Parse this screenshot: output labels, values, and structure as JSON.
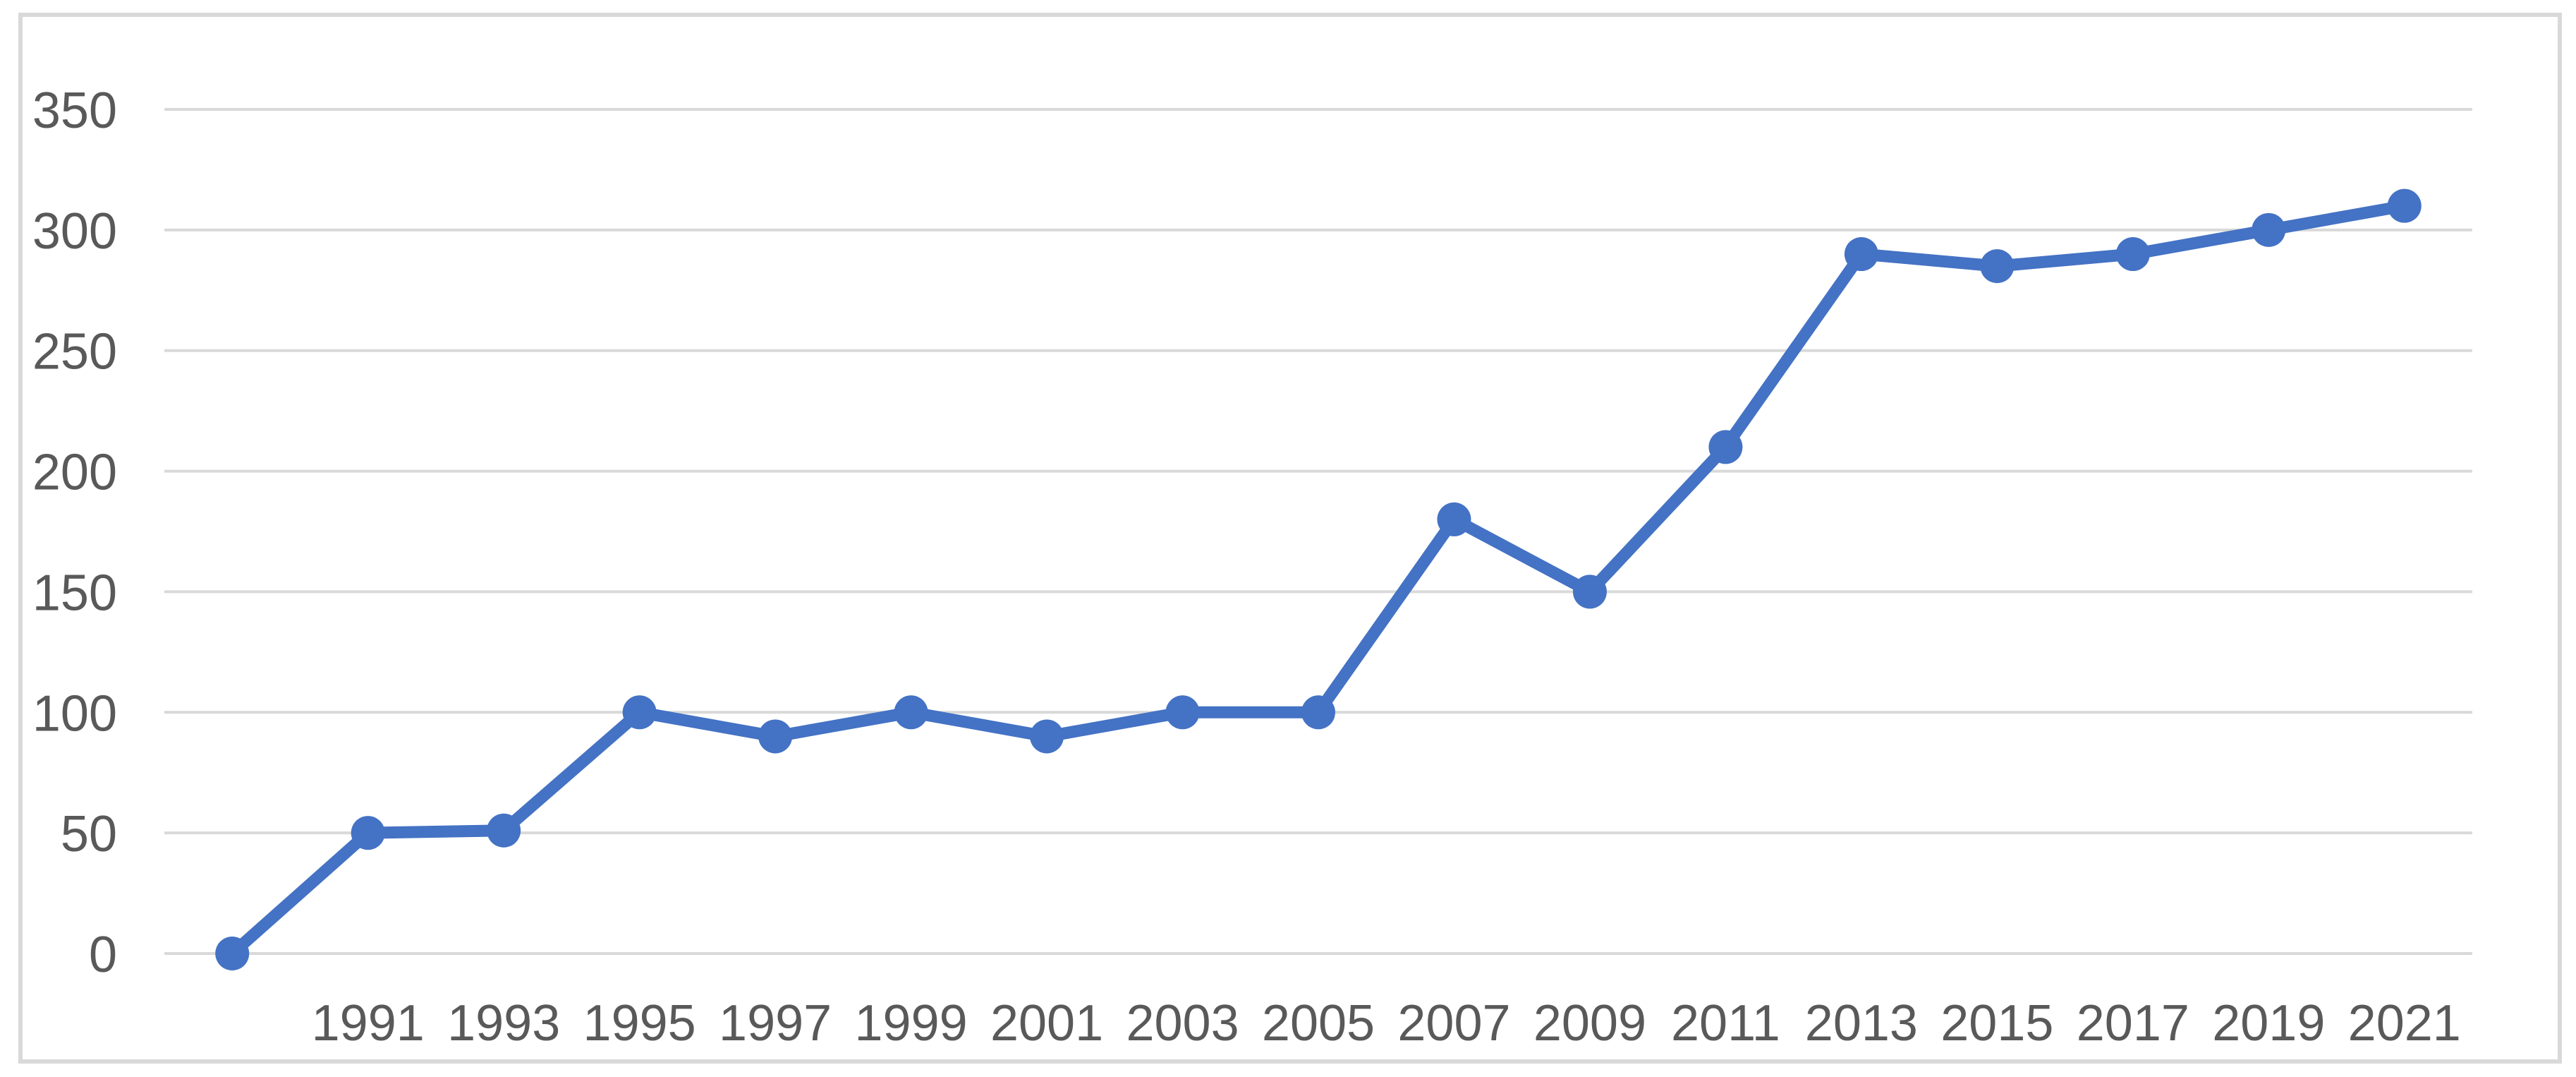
{
  "chart_data": {
    "type": "line",
    "title": "",
    "xlabel": "",
    "ylabel": "",
    "categories": [
      "",
      "1991",
      "1993",
      "1995",
      "1997",
      "1999",
      "2001",
      "2003",
      "2005",
      "2007",
      "2009",
      "2011",
      "2013",
      "2015",
      "2017",
      "2019",
      "2021"
    ],
    "values": [
      0,
      50,
      51,
      100,
      90,
      100,
      90,
      100,
      100,
      180,
      150,
      210,
      290,
      285,
      290,
      300,
      310
    ],
    "ylim": [
      0,
      350
    ],
    "ytick_step": 50,
    "ytick_labels": [
      "0",
      "50",
      "100",
      "150",
      "200",
      "250",
      "300",
      "350"
    ],
    "grid": "horizontal",
    "legend": "none",
    "marker": "circle",
    "colors": {
      "line": "#4472C4",
      "marker": "#4472C4",
      "gridline": "#D9D9D9",
      "tick_label": "#595959",
      "frame_border": "#D9D9D9",
      "background": "#FFFFFF"
    }
  }
}
